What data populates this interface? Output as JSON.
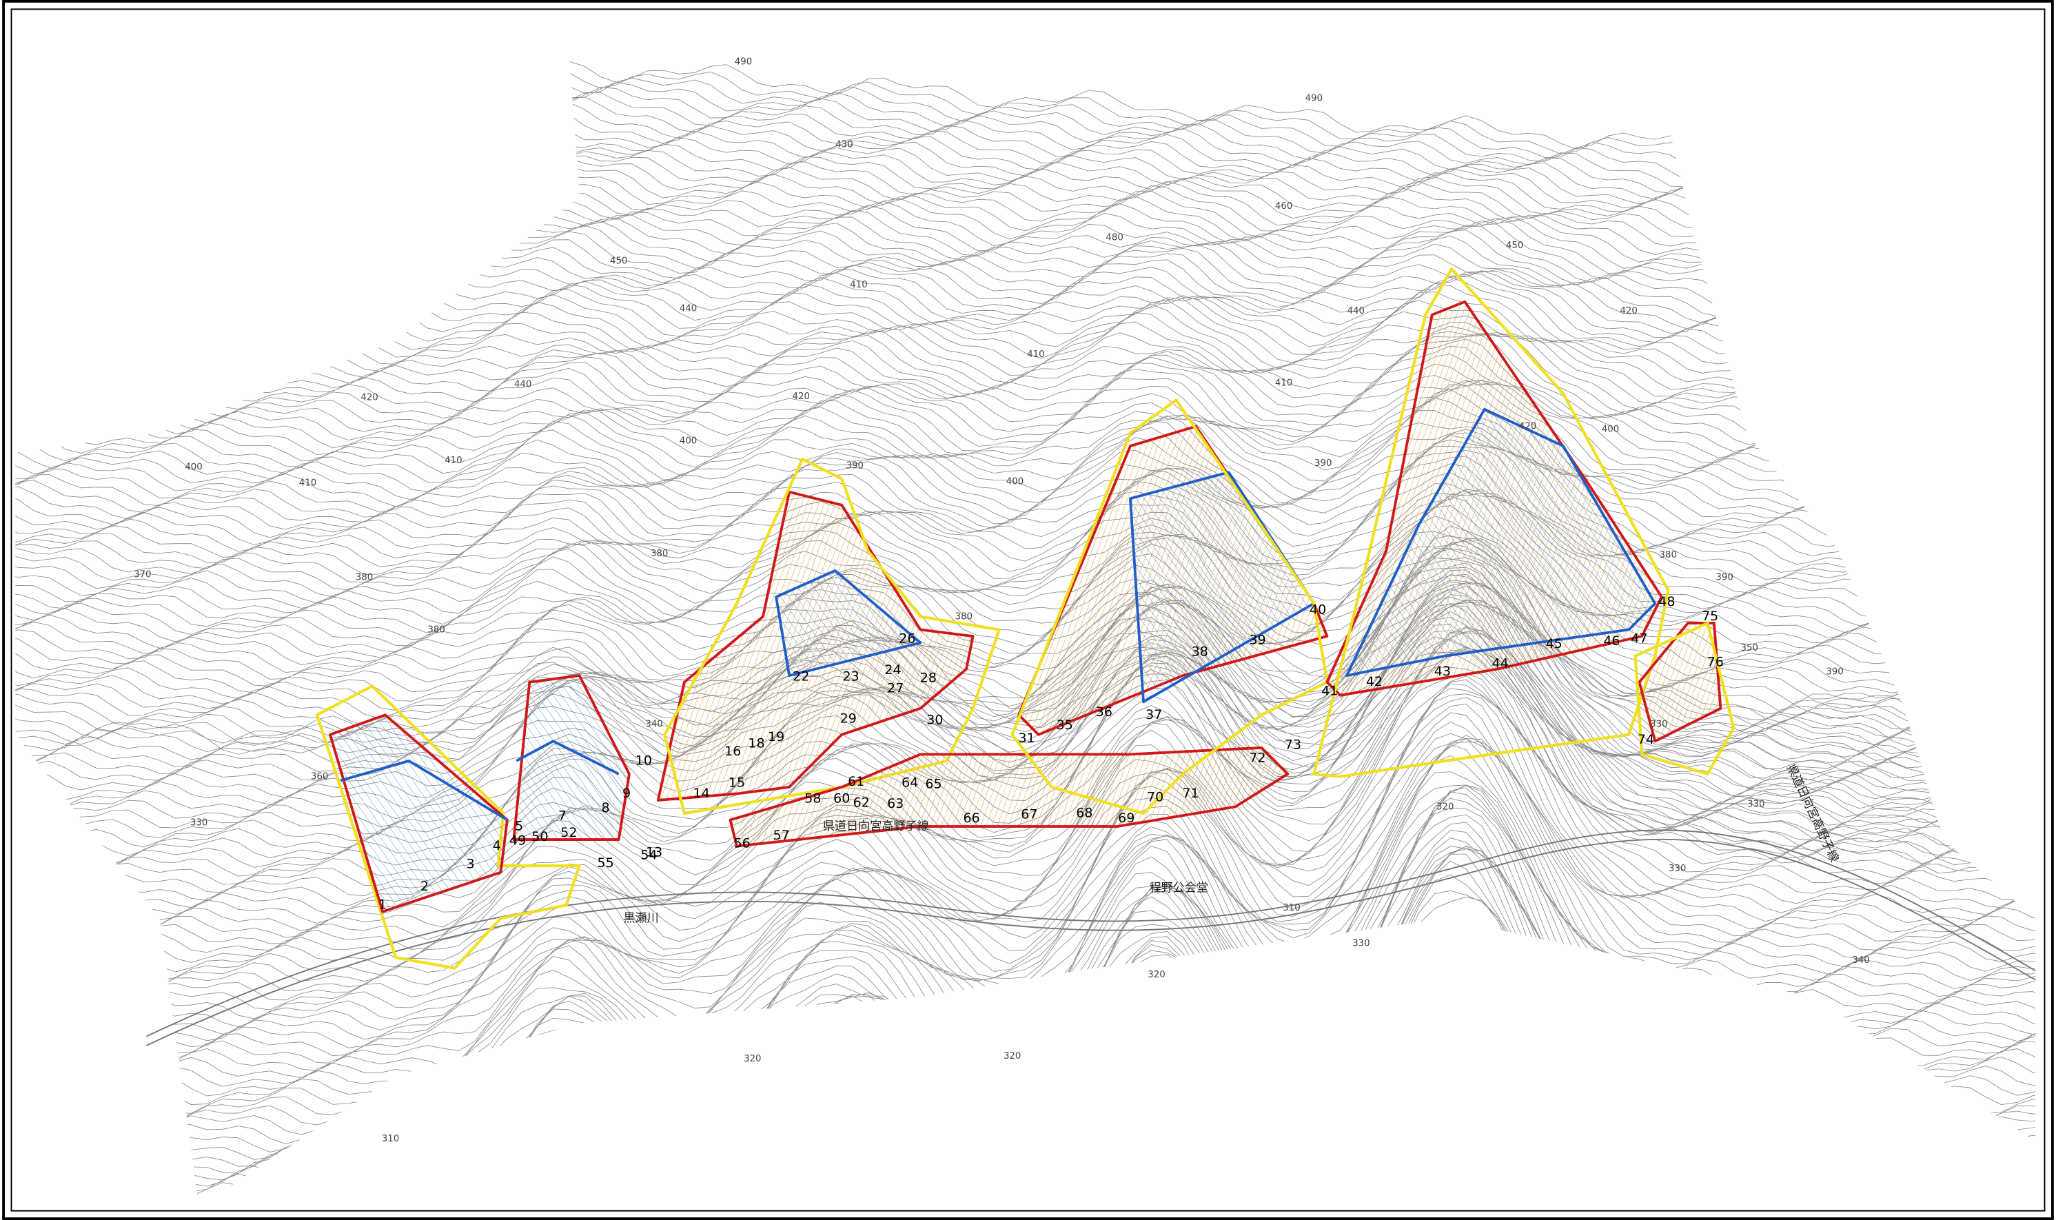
{
  "contour_labels": [
    "490",
    "490",
    "430",
    "460",
    "480",
    "450",
    "420",
    "450",
    "440",
    "410",
    "440",
    "410",
    "410",
    "440",
    "420",
    "420",
    "400",
    "410",
    "400",
    "410",
    "390",
    "400",
    "390",
    "400",
    "420",
    "380",
    "390",
    "380",
    "380",
    "370",
    "380",
    "380",
    "360",
    "340",
    "330",
    "350",
    "390",
    "330",
    "320",
    "330",
    "330",
    "310",
    "330",
    "320",
    "340",
    "320",
    "320",
    "310"
  ],
  "section_labels": [
    "1",
    "2",
    "3",
    "4",
    "5",
    "7",
    "8",
    "9",
    "10",
    "13",
    "14",
    "15",
    "16",
    "18",
    "19",
    "22",
    "23",
    "24",
    "26",
    "27",
    "28",
    "29",
    "30",
    "31",
    "35",
    "36",
    "37",
    "38",
    "39",
    "40",
    "41",
    "42",
    "43",
    "44",
    "45",
    "46",
    "47",
    "48",
    "75",
    "76",
    "74",
    "73",
    "72",
    "71",
    "70",
    "69",
    "68",
    "67",
    "66",
    "65",
    "64",
    "63",
    "62",
    "61",
    "60",
    "58",
    "57",
    "56",
    "55",
    "54",
    "52",
    "50",
    "49"
  ],
  "place_names": [
    "黒瀬川",
    "県道日向宮高野子線",
    "程野公会堂",
    "県道日向宮高野子線"
  ]
}
